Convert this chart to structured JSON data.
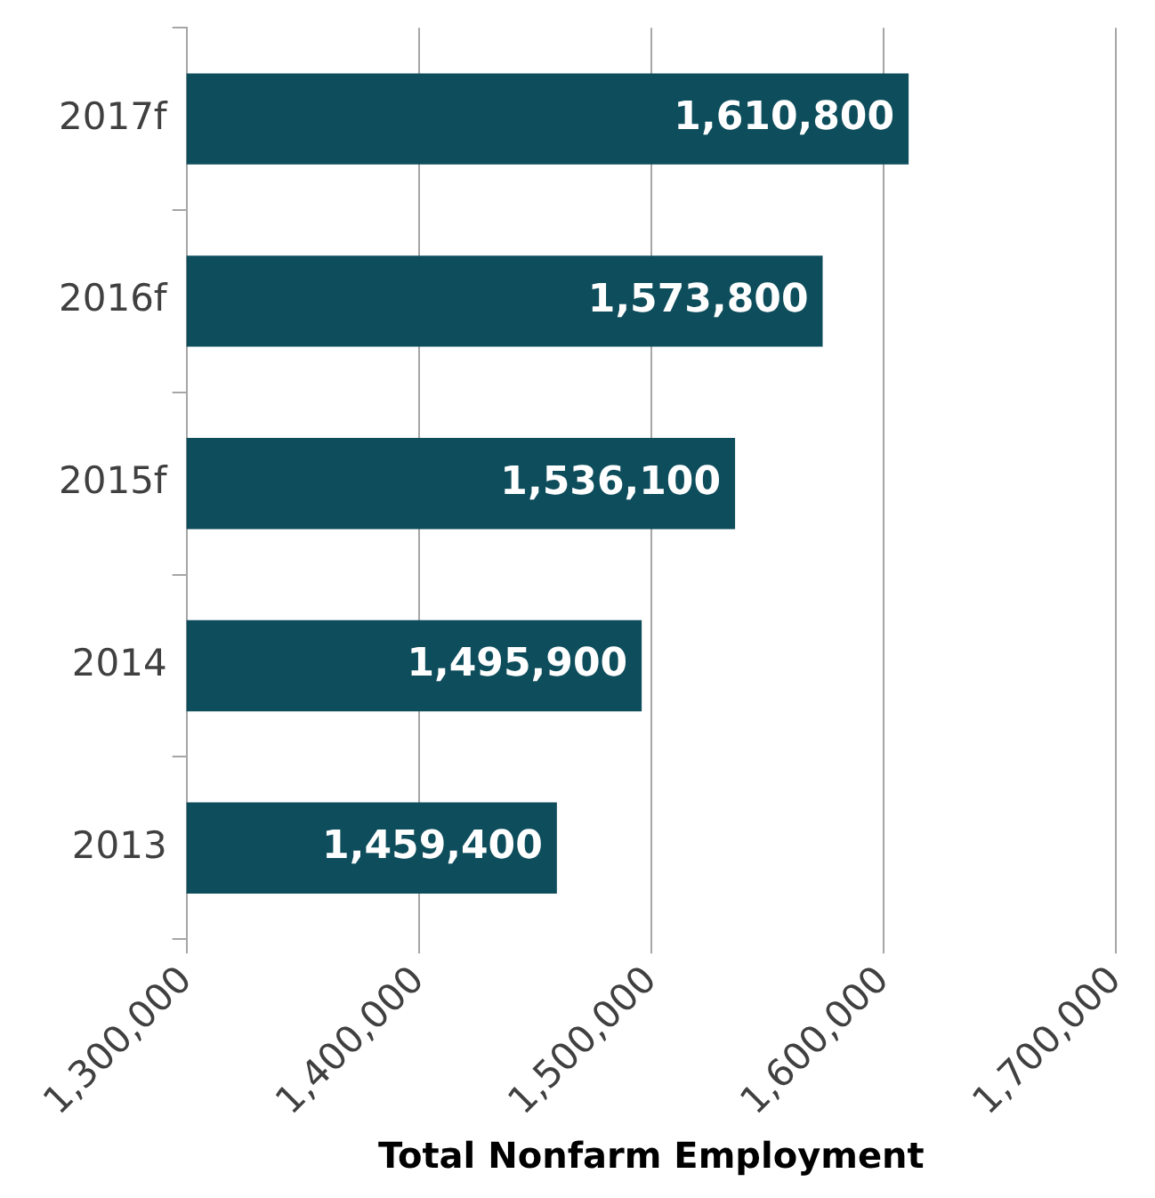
{
  "chart_data": {
    "type": "bar",
    "orientation": "horizontal",
    "xlabel": "Total Nonfarm Employment",
    "categories": [
      "2017f",
      "2016f",
      "2015f",
      "2014",
      "2013"
    ],
    "values": [
      1610800,
      1573800,
      1536100,
      1495900,
      1459400
    ],
    "value_labels": [
      "1,610,800",
      "1,573,800",
      "1,536,100",
      "1,495,900",
      "1,459,400"
    ],
    "color": "#0e4d5c",
    "xlim": [
      1300000,
      1700000
    ],
    "xticks": [
      {
        "value": 1300000,
        "label": "1,300,000"
      },
      {
        "value": 1400000,
        "label": "1,400,000"
      },
      {
        "value": 1500000,
        "label": "1,500,000"
      },
      {
        "value": 1600000,
        "label": "1,600,000"
      },
      {
        "value": 1700000,
        "label": "1,700,000"
      }
    ],
    "grid": "x",
    "legend": false
  }
}
